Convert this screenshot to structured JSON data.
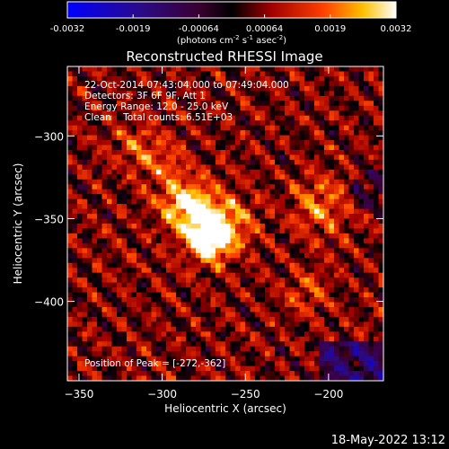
{
  "chart_data": {
    "type": "heatmap",
    "title": "Reconstructed RHESSI Image",
    "xlabel": "Heliocentric X (arcsec)",
    "ylabel": "Heliocentric Y (arcsec)",
    "xlim": [
      -357,
      -167
    ],
    "ylim": [
      -448,
      -258
    ],
    "x_ticks": [
      -350,
      -300,
      -250,
      -200
    ],
    "y_ticks": [
      -300,
      -350,
      -400
    ],
    "colorbar": {
      "ticks": [
        "-0.0032",
        "-0.0019",
        "-0.00064",
        "0.00064",
        "0.0019",
        "0.0032"
      ],
      "range": [
        -0.0032,
        0.0032
      ],
      "unit_label": "(photons cm",
      "unit_exp1": "-2",
      "unit_mid": " s",
      "unit_exp2": "-1",
      "unit_mid2": " asec",
      "unit_exp3": "-2",
      "unit_end": ")"
    },
    "annotations": [
      "22-Oct-2014 07:43:04.000 to 07:49:04.000",
      "Detectors: 3F 6F 9F, Att 1",
      "Energy Range: 12.0 - 25.0 keV",
      "Clean    Total counts: 6.51E+03"
    ],
    "peak_label": "Position of Peak = [-272,-362]",
    "peak": [
      -272,
      -362
    ],
    "sources": [
      {
        "x": -272,
        "y": -362,
        "amp": 1.0,
        "sigma": 9
      },
      {
        "x": -285,
        "y": -343,
        "amp": 0.85,
        "sigma": 11
      },
      {
        "x": -262,
        "y": -352,
        "amp": 0.55,
        "sigma": 12
      },
      {
        "x": -205,
        "y": -342,
        "amp": 0.45,
        "sigma": 12
      },
      {
        "x": -315,
        "y": -305,
        "amp": 0.35,
        "sigma": 10
      },
      {
        "x": -298,
        "y": -318,
        "amp": 0.35,
        "sigma": 9
      },
      {
        "x": -212,
        "y": -395,
        "amp": 0.3,
        "sigma": 10
      }
    ],
    "grid": false
  },
  "footer": {
    "timestamp": "18-May-2022 13:12"
  }
}
